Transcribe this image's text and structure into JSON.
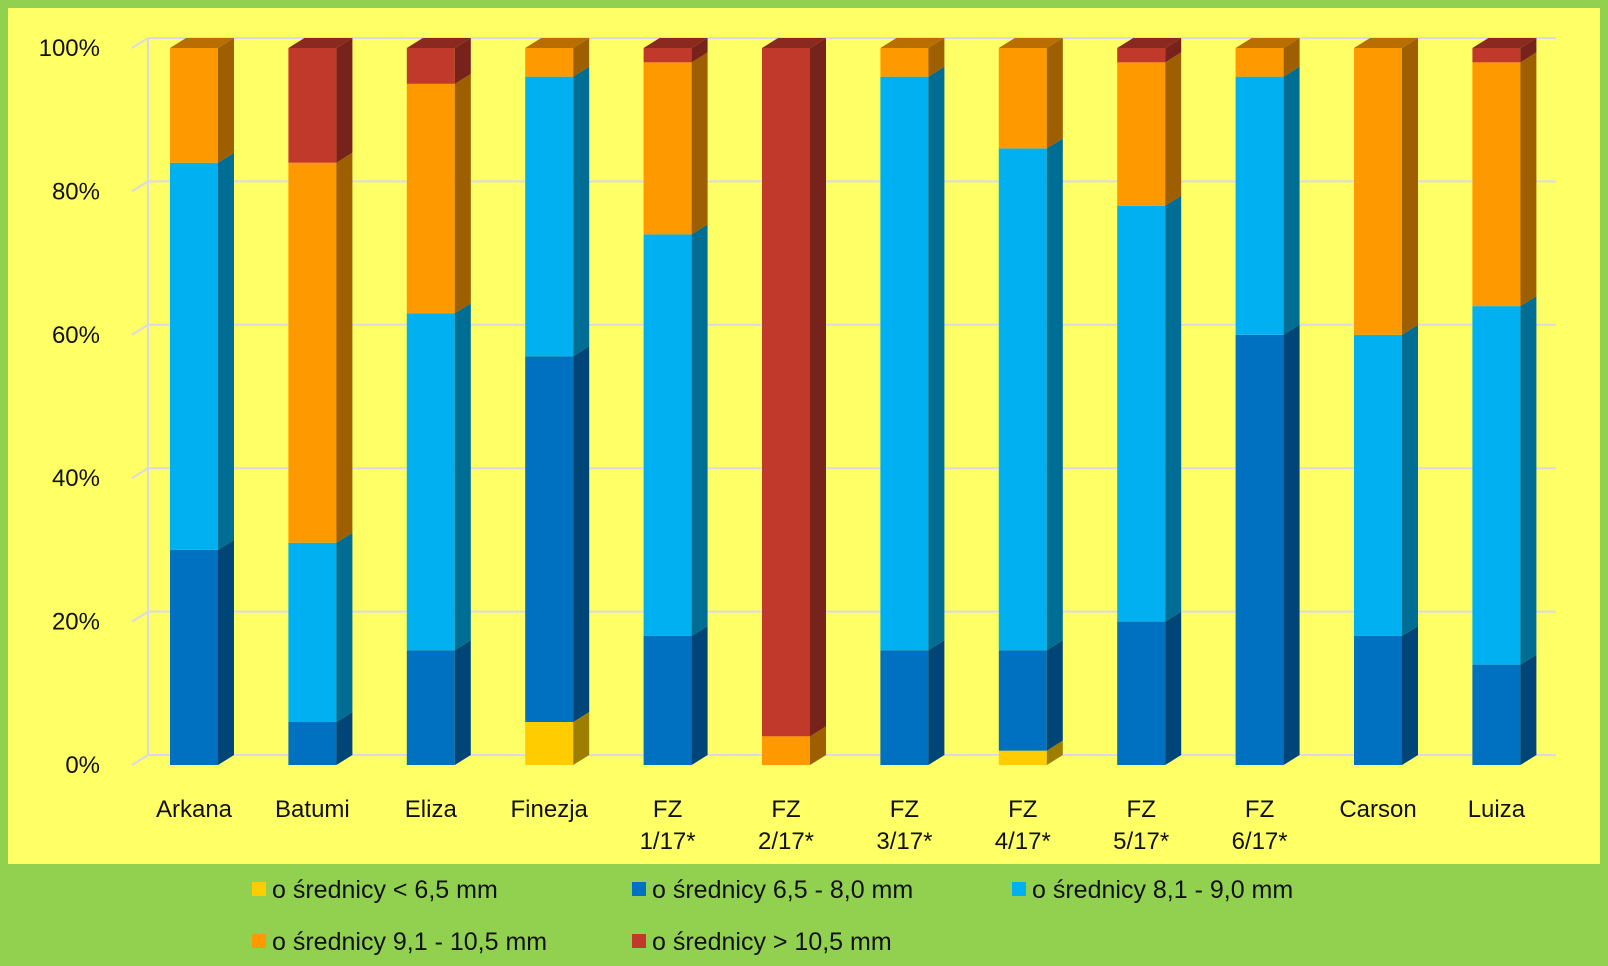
{
  "chart_data": {
    "type": "bar",
    "stacked": true,
    "percent_stacked": true,
    "three_d": true,
    "categories": [
      [
        "Arkana"
      ],
      [
        "Batumi"
      ],
      [
        "Eliza"
      ],
      [
        "Finezja"
      ],
      [
        "FZ",
        "1/17*"
      ],
      [
        "FZ",
        "2/17*"
      ],
      [
        "FZ",
        "3/17*"
      ],
      [
        "FZ",
        "4/17*"
      ],
      [
        "FZ",
        "5/17*"
      ],
      [
        "FZ",
        "6/17*"
      ],
      [
        "Carson"
      ],
      [
        "Luiza"
      ]
    ],
    "series": [
      {
        "name": "o średnicy < 6,5 mm",
        "color": "#ffcc00",
        "values": [
          0,
          0,
          0,
          6,
          0,
          0,
          0,
          2,
          0,
          0,
          0,
          0
        ]
      },
      {
        "name": "o średnicy 6,5 - 8,0 mm",
        "color": "#0070c0",
        "values": [
          30,
          6,
          16,
          51,
          18,
          0,
          16,
          14,
          20,
          60,
          18,
          14
        ]
      },
      {
        "name": "o średnicy 8,1 - 9,0 mm",
        "color": "#00b0f0",
        "values": [
          54,
          25,
          47,
          39,
          56,
          0,
          80,
          70,
          58,
          36,
          42,
          50
        ]
      },
      {
        "name": "o średnicy 9,1 - 10,5 mm",
        "color": "#ff9900",
        "values": [
          16,
          53,
          32,
          4,
          24,
          4,
          4,
          14,
          20,
          4,
          40,
          34
        ]
      },
      {
        "name": "o średnicy > 10,5 mm",
        "color": "#c0392b",
        "values": [
          0,
          16,
          5,
          0,
          2,
          96,
          0,
          0,
          2,
          0,
          0,
          2
        ]
      }
    ],
    "ylim": [
      0,
      100
    ],
    "yticks": [
      "0%",
      "20%",
      "40%",
      "60%",
      "80%",
      "100%"
    ],
    "grid": true,
    "legend_position": "bottom",
    "plot_background": "#ffff66",
    "page_background": "#92d050"
  }
}
